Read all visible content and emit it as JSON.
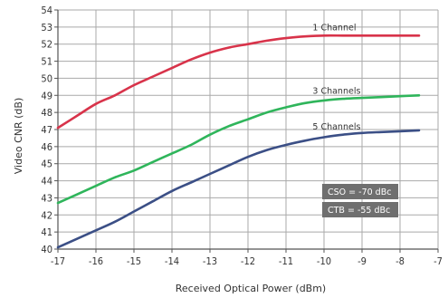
{
  "chart_data": {
    "type": "line",
    "xlabel": "Received Optical Power (dBm)",
    "ylabel": "Video CNR (dB)",
    "xlim": [
      -17,
      -7
    ],
    "ylim": [
      40,
      54
    ],
    "xticks": [
      "-17",
      "-16",
      "-15",
      "-14",
      "-13",
      "-12",
      "-11",
      "-10",
      "-9",
      "-8",
      "-7"
    ],
    "yticks": [
      "40",
      "41",
      "42",
      "43",
      "44",
      "45",
      "46",
      "47",
      "48",
      "49",
      "50",
      "51",
      "52",
      "53",
      "54"
    ],
    "grid": true,
    "annotations": [
      "CSO = -70 dBc",
      "CTB = -55 dBc"
    ],
    "series": [
      {
        "name": "1 Channel",
        "color": "#d8334a",
        "x": [
          -17,
          -16.5,
          -16,
          -15.5,
          -15,
          -14.5,
          -14,
          -13.5,
          -13,
          -12.5,
          -12,
          -11.5,
          -11,
          -10.5,
          -10,
          -9.5,
          -9,
          -8.5,
          -8,
          -7.5
        ],
        "y": [
          47.1,
          47.8,
          48.5,
          49.0,
          49.6,
          50.1,
          50.6,
          51.1,
          51.5,
          51.8,
          52.0,
          52.2,
          52.35,
          52.45,
          52.5,
          52.5,
          52.5,
          52.5,
          52.5,
          52.5
        ]
      },
      {
        "name": "3 Channels",
        "color": "#2fb55b",
        "x": [
          -17,
          -16.5,
          -16,
          -15.5,
          -15,
          -14.5,
          -14,
          -13.5,
          -13,
          -12.5,
          -12,
          -11.5,
          -11,
          -10.5,
          -10,
          -9.5,
          -9,
          -8.5,
          -8,
          -7.5
        ],
        "y": [
          42.7,
          43.2,
          43.7,
          44.2,
          44.6,
          45.1,
          45.6,
          46.1,
          46.7,
          47.2,
          47.6,
          48.0,
          48.3,
          48.55,
          48.7,
          48.8,
          48.85,
          48.9,
          48.95,
          49.0
        ]
      },
      {
        "name": "5 Channels",
        "color": "#3b4f86",
        "x": [
          -17,
          -16.5,
          -16,
          -15.5,
          -15,
          -14.5,
          -14,
          -13.5,
          -13,
          -12.5,
          -12,
          -11.5,
          -11,
          -10.5,
          -10,
          -9.5,
          -9,
          -8.5,
          -8,
          -7.5
        ],
        "y": [
          40.1,
          40.6,
          41.1,
          41.6,
          42.2,
          42.8,
          43.4,
          43.9,
          44.4,
          44.9,
          45.4,
          45.8,
          46.1,
          46.35,
          46.55,
          46.7,
          46.8,
          46.85,
          46.9,
          46.95
        ]
      }
    ]
  }
}
